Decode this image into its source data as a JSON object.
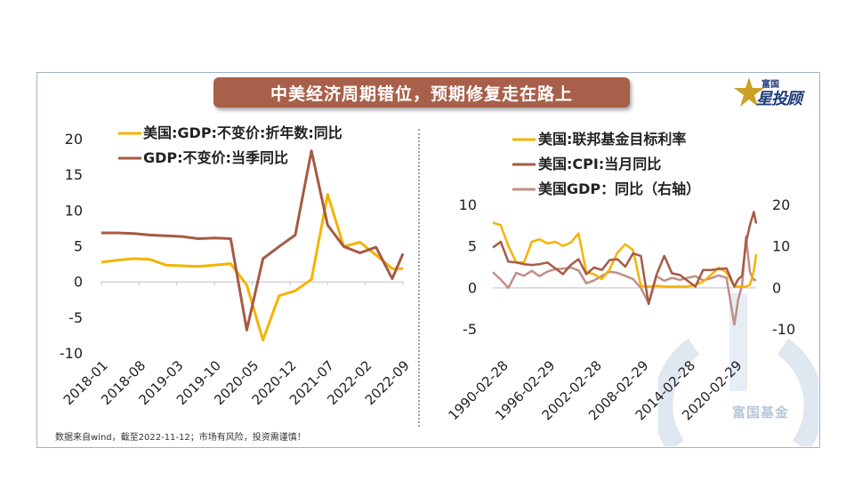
{
  "title": "中美经济周期错位，预期修复走在路上",
  "logo": {
    "small": "富国",
    "big_1": "星",
    "big_2": "投顾",
    "watermark": "富国基金"
  },
  "footnote": "数据来自wind，截至2022-11-12；市场有风险，投资需谨慎！",
  "colors": {
    "gold": "#f5b300",
    "rust": "#a65a44",
    "rose": "#c08f86",
    "title_bg": "#a8604a"
  },
  "chart_data": [
    {
      "type": "line",
      "yticks": [
        "20",
        "15",
        "10",
        "5",
        "0",
        "-5",
        "-10"
      ],
      "ylim": [
        -10,
        20
      ],
      "xticks": [
        "2018-01",
        "2018-08",
        "2019-03",
        "2019-10",
        "2020-05",
        "2020-12",
        "2021-07",
        "2022-02",
        "2022-09"
      ],
      "x": [
        "2018-01",
        "2018-04",
        "2018-07",
        "2018-10",
        "2019-01",
        "2019-04",
        "2019-07",
        "2019-10",
        "2020-01",
        "2020-04",
        "2020-07",
        "2020-10",
        "2021-01",
        "2021-04",
        "2021-07",
        "2021-10",
        "2022-01",
        "2022-04",
        "2022-07",
        "2022-09"
      ],
      "series": [
        {
          "name": "美国:GDP:不变价:折年数:同比",
          "color": "#f5b300",
          "values": [
            2.7,
            3.0,
            3.2,
            3.1,
            2.3,
            2.2,
            2.1,
            2.3,
            2.5,
            -0.5,
            -8.2,
            -2.0,
            -1.3,
            0.3,
            12.2,
            4.9,
            5.5,
            3.7,
            1.8,
            1.8
          ]
        },
        {
          "name": "GDP:不变价:当季同比",
          "color": "#a65a44",
          "values": [
            6.8,
            6.8,
            6.7,
            6.5,
            6.4,
            6.3,
            6.0,
            6.1,
            6.0,
            -6.8,
            3.2,
            4.9,
            6.5,
            18.3,
            7.9,
            4.9,
            4.0,
            4.8,
            0.4,
            3.9
          ]
        }
      ]
    },
    {
      "type": "line",
      "yticks_left": [
        "10",
        "5",
        "0",
        "-5"
      ],
      "ylim_left": [
        -5,
        10
      ],
      "yticks_right": [
        "20",
        "10",
        "0",
        "-10"
      ],
      "ylim_right": [
        -10,
        20
      ],
      "xticks": [
        "1990-02-28",
        "1996-02-29",
        "2002-02-28",
        "2008-02-29",
        "2014-02-28",
        "2020-02-29"
      ],
      "x": [
        1989.0,
        1990.0,
        1991.0,
        1992.0,
        1993.0,
        1994.0,
        1995.0,
        1996.0,
        1997.0,
        1998.0,
        1999.0,
        2000.0,
        2001.0,
        2002.0,
        2003.0,
        2004.0,
        2005.0,
        2006.0,
        2007.0,
        2008.0,
        2009.0,
        2010.0,
        2011.0,
        2012.0,
        2013.0,
        2014.0,
        2015.0,
        2016.0,
        2017.0,
        2018.0,
        2019.0,
        2020.0,
        2020.5,
        2021.0,
        2021.5,
        2022.0,
        2022.5,
        2022.8
      ],
      "series": [
        {
          "name": "美国:联邦基金目标利率",
          "color": "#f5b300",
          "axis": "left",
          "values": [
            7.8,
            7.5,
            5.0,
            3.0,
            3.0,
            5.5,
            5.8,
            5.3,
            5.5,
            5.0,
            5.4,
            6.5,
            1.8,
            1.6,
            1.0,
            2.2,
            4.2,
            5.2,
            4.5,
            0.2,
            0.1,
            0.2,
            0.1,
            0.1,
            0.1,
            0.1,
            0.3,
            0.7,
            1.5,
            2.4,
            1.8,
            0.1,
            0.1,
            0.1,
            0.1,
            0.3,
            2.0,
            4.0
          ]
        },
        {
          "name": "美国:CPI:当月同比",
          "color": "#a65a44",
          "axis": "left",
          "values": [
            4.8,
            5.5,
            3.1,
            3.0,
            2.8,
            2.7,
            2.8,
            3.0,
            2.3,
            1.6,
            2.7,
            3.4,
            1.6,
            2.4,
            2.1,
            3.3,
            3.4,
            2.5,
            4.1,
            3.8,
            -2.0,
            1.5,
            3.8,
            1.7,
            1.5,
            0.8,
            0.1,
            2.1,
            2.1,
            2.2,
            2.3,
            0.1,
            1.0,
            1.4,
            5.4,
            7.5,
            9.1,
            7.7
          ]
        },
        {
          "name": "美国GDP：同比（右轴）",
          "color": "#c08f86",
          "axis": "right",
          "values": [
            3.7,
            1.9,
            -0.1,
            3.5,
            2.8,
            4.0,
            2.7,
            3.8,
            4.4,
            4.5,
            4.8,
            4.1,
            1.0,
            1.7,
            2.8,
            3.8,
            3.5,
            2.8,
            2.0,
            -0.1,
            -3.8,
            2.7,
            1.6,
            2.3,
            1.8,
            2.3,
            2.7,
            1.7,
            2.2,
            2.9,
            2.3,
            -9.0,
            -2.8,
            0.5,
            12.2,
            3.7,
            1.8,
            1.8
          ]
        }
      ]
    }
  ]
}
